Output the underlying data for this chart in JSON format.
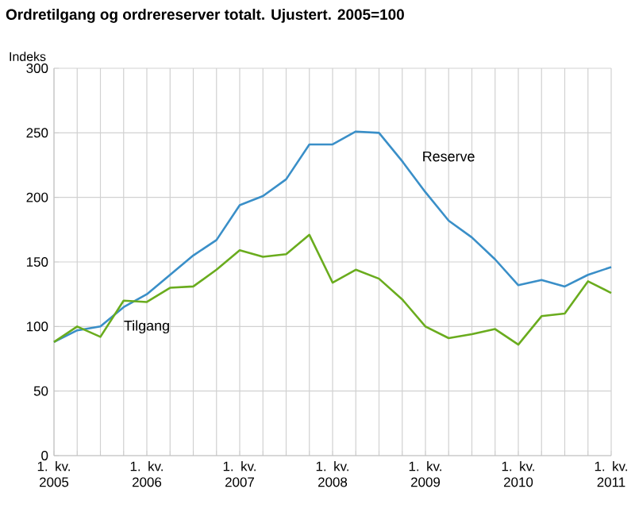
{
  "chart_data": {
    "type": "line",
    "title": "Ordretilgang og ordrereserver totalt. Ujustert. 2005=100",
    "ylabel": "Indeks",
    "categories": [
      "1. kv. 2005",
      null,
      null,
      null,
      "1. kv. 2006",
      null,
      null,
      null,
      "1. kv. 2007",
      null,
      null,
      null,
      "1. kv. 2008",
      null,
      null,
      null,
      "1. kv. 2009",
      null,
      null,
      null,
      "1. kv. 2010",
      null,
      null,
      null,
      "1. kv. 2011"
    ],
    "series": [
      {
        "name": "Reserve",
        "color": "#3a8fc8",
        "values": [
          88,
          97,
          100,
          115,
          125,
          140,
          155,
          167,
          194,
          201,
          214,
          241,
          241,
          251,
          250,
          228,
          204,
          182,
          169,
          152,
          132,
          136,
          131,
          140,
          146
        ]
      },
      {
        "name": "Tilgang",
        "color": "#6aac1e",
        "values": [
          88,
          100,
          92,
          120,
          119,
          130,
          131,
          144,
          159,
          154,
          156,
          171,
          134,
          144,
          137,
          121,
          100,
          91,
          94,
          98,
          86,
          108,
          110,
          135,
          126
        ]
      }
    ],
    "ylim": [
      0,
      300
    ],
    "yticks": [
      0,
      50,
      100,
      150,
      200,
      250,
      300
    ],
    "grid": true,
    "legend": false,
    "marker": "none",
    "line_style": "solid"
  }
}
